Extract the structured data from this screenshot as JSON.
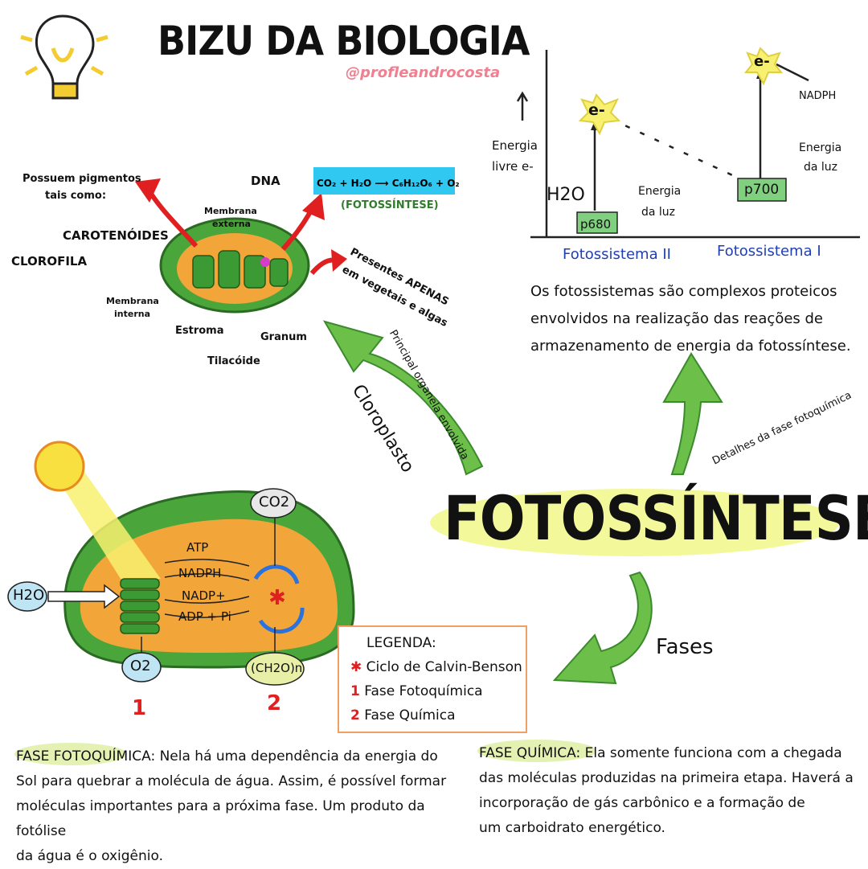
{
  "header": {
    "title": "BIZU DA BIOLOGIA",
    "handle": "@profleandrocosta"
  },
  "main_title": "FOTOSSÍNTESE",
  "chloroplast": {
    "pigments_label_1": "Possuem pigmentos",
    "pigments_label_2": "tais como:",
    "carotenoides": "CAROTENÓIDES",
    "clorofila": "CLOROFILA",
    "dna": "DNA",
    "membrana_externa_1": "Membrana",
    "membrana_externa_2": "externa",
    "membrana_interna_1": "Membrana",
    "membrana_interna_2": "interna",
    "estroma": "Estroma",
    "tilacoide": "Tilacóide",
    "granum": "Granum",
    "presentes_1": "Presentes APENAS",
    "presentes_2": "em vegetais e algas",
    "equation_label": "(FOTOSSÍNTESE)",
    "arrow_label_1": "Cloroplasto",
    "arrow_label_2": "Principal organela envolvida"
  },
  "energy_graph": {
    "y_label_1": "Energia",
    "y_label_2": "livre e-",
    "h2o": "H2O",
    "p680": "p680",
    "p700": "p700",
    "electron": "e-",
    "nadph": "NADPH",
    "energia_luz_1": "Energia",
    "energia_luz_2": "da luz",
    "fotossistema_2": "Fotossistema II",
    "fotossistema_1": "Fotossistema I",
    "description_1": "Os fotossistemas são complexos proteicos",
    "description_2": "envolvidos na realização das reações de",
    "description_3": "armazenamento de energia da fotossíntese.",
    "arrow_label": "Detalhes da fase fotoquímica"
  },
  "phases_diagram": {
    "co2": "CO2",
    "h2o": "H2O",
    "o2": "O2",
    "ch2on": "(CH2O)n",
    "atp": "ATP",
    "nadph": "NADPH",
    "nadp": "NADP+",
    "adp": "ADP + Pi",
    "num_1": "1",
    "num_2": "2",
    "fases_label": "Fases"
  },
  "legend": {
    "title": "LEGENDA:",
    "item_star": "Ciclo de Calvin-Benson",
    "item_1_num": "1",
    "item_1": "Fase Fotoquímica",
    "item_2_num": "2",
    "item_2": "Fase Química"
  },
  "fase_fotoquimica": {
    "title": "FASE FOTOQUÍMICA",
    "line_1": ": Nela há uma dependência da energia do",
    "line_2": "Sol para quebrar a molécula de água. Assim, é possível formar",
    "line_3": "moléculas importantes para a próxima fase. Um produto da fotólise",
    "line_4": "da água é o oxigênio."
  },
  "fase_quimica": {
    "title": "FASE QUÍMICA",
    "line_1": ": Ela somente funciona com a chegada",
    "line_2": "das moléculas produzidas na primeira etapa. Haverá a",
    "line_3": "incorporação de gás carbônico e a formação de",
    "line_4": "um carboidrato energético."
  },
  "colors": {
    "green": "#5cb84a",
    "dark_green": "#2f7d2a",
    "orange": "#f0a63c",
    "red": "#e02020",
    "yellow_hl": "#eef570",
    "cyan": "#30c8f0",
    "blue": "#1f3fb2"
  }
}
